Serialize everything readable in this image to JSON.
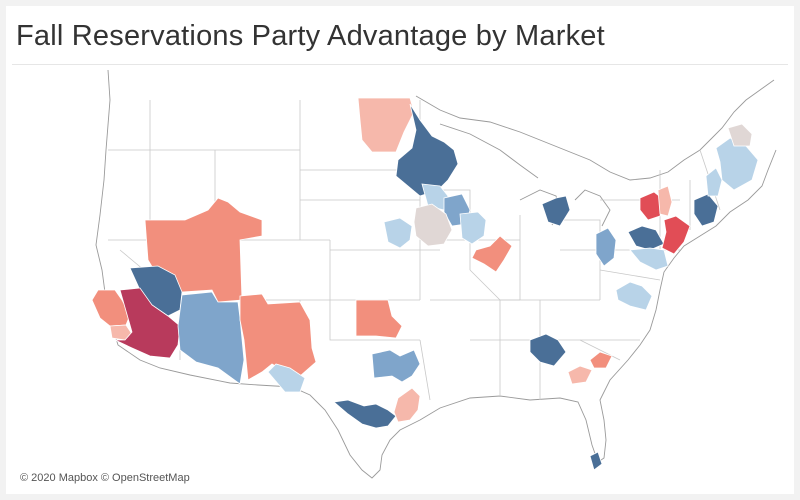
{
  "header": {
    "title": "Fall Reservations Party Advantage by Market"
  },
  "map": {
    "attribution": "© 2020 Mapbox © OpenStreetMap",
    "colors": {
      "dark_blue": "#4a6f97",
      "blue": "#7fa5cb",
      "light_blue": "#b8d3e8",
      "neutral": "#e0d7d5",
      "light_red": "#f6b8ab",
      "red": "#f28f7d",
      "strong_red": "#e14d56",
      "dark_red": "#b83a5c"
    },
    "markets": [
      {
        "id": "los-angeles",
        "color": "dark_red"
      },
      {
        "id": "las-vegas",
        "color": "dark_blue"
      },
      {
        "id": "san-luis-obispo",
        "color": "red"
      },
      {
        "id": "santa-barbara",
        "color": "light_red"
      },
      {
        "id": "utah",
        "color": "red"
      },
      {
        "id": "arizona",
        "color": "blue"
      },
      {
        "id": "new-mexico",
        "color": "red"
      },
      {
        "id": "el-paso",
        "color": "light_blue"
      },
      {
        "id": "wichita",
        "color": "red"
      },
      {
        "id": "dallas",
        "color": "blue"
      },
      {
        "id": "san-antonio",
        "color": "dark_blue"
      },
      {
        "id": "houston",
        "color": "light_red"
      },
      {
        "id": "north-dakota",
        "color": "light_red"
      },
      {
        "id": "minneapolis",
        "color": "dark_blue"
      },
      {
        "id": "wisconsin-north",
        "color": "light_blue"
      },
      {
        "id": "madison",
        "color": "blue"
      },
      {
        "id": "iowa-east",
        "color": "neutral"
      },
      {
        "id": "iowa-west",
        "color": "light_blue"
      },
      {
        "id": "chicago",
        "color": "light_blue"
      },
      {
        "id": "peoria",
        "color": "red"
      },
      {
        "id": "michigan",
        "color": "dark_blue"
      },
      {
        "id": "ohio",
        "color": "blue"
      },
      {
        "id": "pittsburgh",
        "color": "dark_blue"
      },
      {
        "id": "pennsylvania-south",
        "color": "light_blue"
      },
      {
        "id": "new-york-west",
        "color": "strong_red"
      },
      {
        "id": "new-york-central",
        "color": "light_red"
      },
      {
        "id": "new-york-city",
        "color": "strong_red"
      },
      {
        "id": "boston",
        "color": "dark_blue"
      },
      {
        "id": "vermont",
        "color": "light_blue"
      },
      {
        "id": "maine",
        "color": "light_blue"
      },
      {
        "id": "maine-north",
        "color": "neutral"
      },
      {
        "id": "virginia",
        "color": "light_blue"
      },
      {
        "id": "atlanta",
        "color": "dark_blue"
      },
      {
        "id": "columbia",
        "color": "red"
      },
      {
        "id": "charleston",
        "color": "light_red"
      },
      {
        "id": "miami",
        "color": "dark_blue"
      }
    ]
  }
}
